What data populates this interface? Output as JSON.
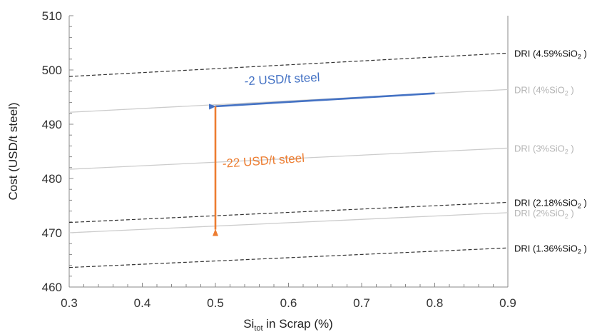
{
  "chart_data": {
    "type": "line",
    "xlabel": {
      "main": "Si",
      "sub": "tot",
      "rest": " in Scrap (%)"
    },
    "ylabel": "Cost (USD/t steel)",
    "xlim": [
      0.3,
      0.9
    ],
    "ylim": [
      460,
      510
    ],
    "x_ticks": [
      0.3,
      0.4,
      0.5,
      0.6,
      0.7,
      0.8,
      0.9
    ],
    "x_tick_labels": [
      "0.3",
      "0.4",
      "0.5",
      "0.6",
      "0.7",
      "0.8",
      "0.9"
    ],
    "y_ticks": [
      460,
      470,
      480,
      490,
      500,
      510
    ],
    "y_tick_labels": [
      "460",
      "470",
      "480",
      "490",
      "500",
      "510"
    ],
    "grid": false,
    "series": [
      {
        "name": "DRI (4.59%SiO2 )",
        "label_main": "DRI (4.59%SiO",
        "label_sub": "2",
        "label_end": " )",
        "x": [
          0.3,
          0.9
        ],
        "y": [
          498.8,
          503.1
        ],
        "style": "dashed",
        "color": "#333333"
      },
      {
        "name": "DRI (4%SiO2 )",
        "label_main": "DRI (4%SiO",
        "label_sub": "2",
        "label_end": " )",
        "x": [
          0.3,
          0.9
        ],
        "y": [
          492.2,
          496.4
        ],
        "style": "solid",
        "color": "#cccccc"
      },
      {
        "name": "DRI (3%SiO2 )",
        "label_main": "DRI (3%SiO",
        "label_sub": "2",
        "label_end": " )",
        "x": [
          0.3,
          0.9
        ],
        "y": [
          481.7,
          485.6
        ],
        "style": "solid",
        "color": "#cccccc"
      },
      {
        "name": "DRI (2.18%SiO2 )",
        "label_main": "DRI (2.18%SiO",
        "label_sub": "2",
        "label_end": " )",
        "x": [
          0.3,
          0.9
        ],
        "y": [
          471.9,
          475.6
        ],
        "style": "dashed",
        "color": "#333333"
      },
      {
        "name": "DRI (2%SiO2 )",
        "label_main": "DRI (2%SiO",
        "label_sub": "2",
        "label_end": " )",
        "x": [
          0.3,
          0.9
        ],
        "y": [
          470.0,
          473.7
        ],
        "style": "solid",
        "color": "#cccccc"
      },
      {
        "name": "DRI (1.36%SiO2 )",
        "label_main": "DRI (1.36%SiO",
        "label_sub": "2",
        "label_end": " )",
        "x": [
          0.3,
          0.9
        ],
        "y": [
          463.6,
          467.2
        ],
        "style": "dashed",
        "color": "#333333"
      }
    ],
    "annotations": [
      {
        "text": "-2 USD/t steel",
        "color": "#4472c4",
        "from": [
          0.8,
          495.7
        ],
        "to": [
          0.5,
          493.3
        ],
        "text_at": [
          0.54,
          497.2
        ]
      },
      {
        "text": "-22 USD/t steel",
        "color": "#ed7d31",
        "from": [
          0.5,
          493.3
        ],
        "to": [
          0.5,
          470.6
        ],
        "text_at": [
          0.51,
          482.0
        ]
      }
    ]
  }
}
